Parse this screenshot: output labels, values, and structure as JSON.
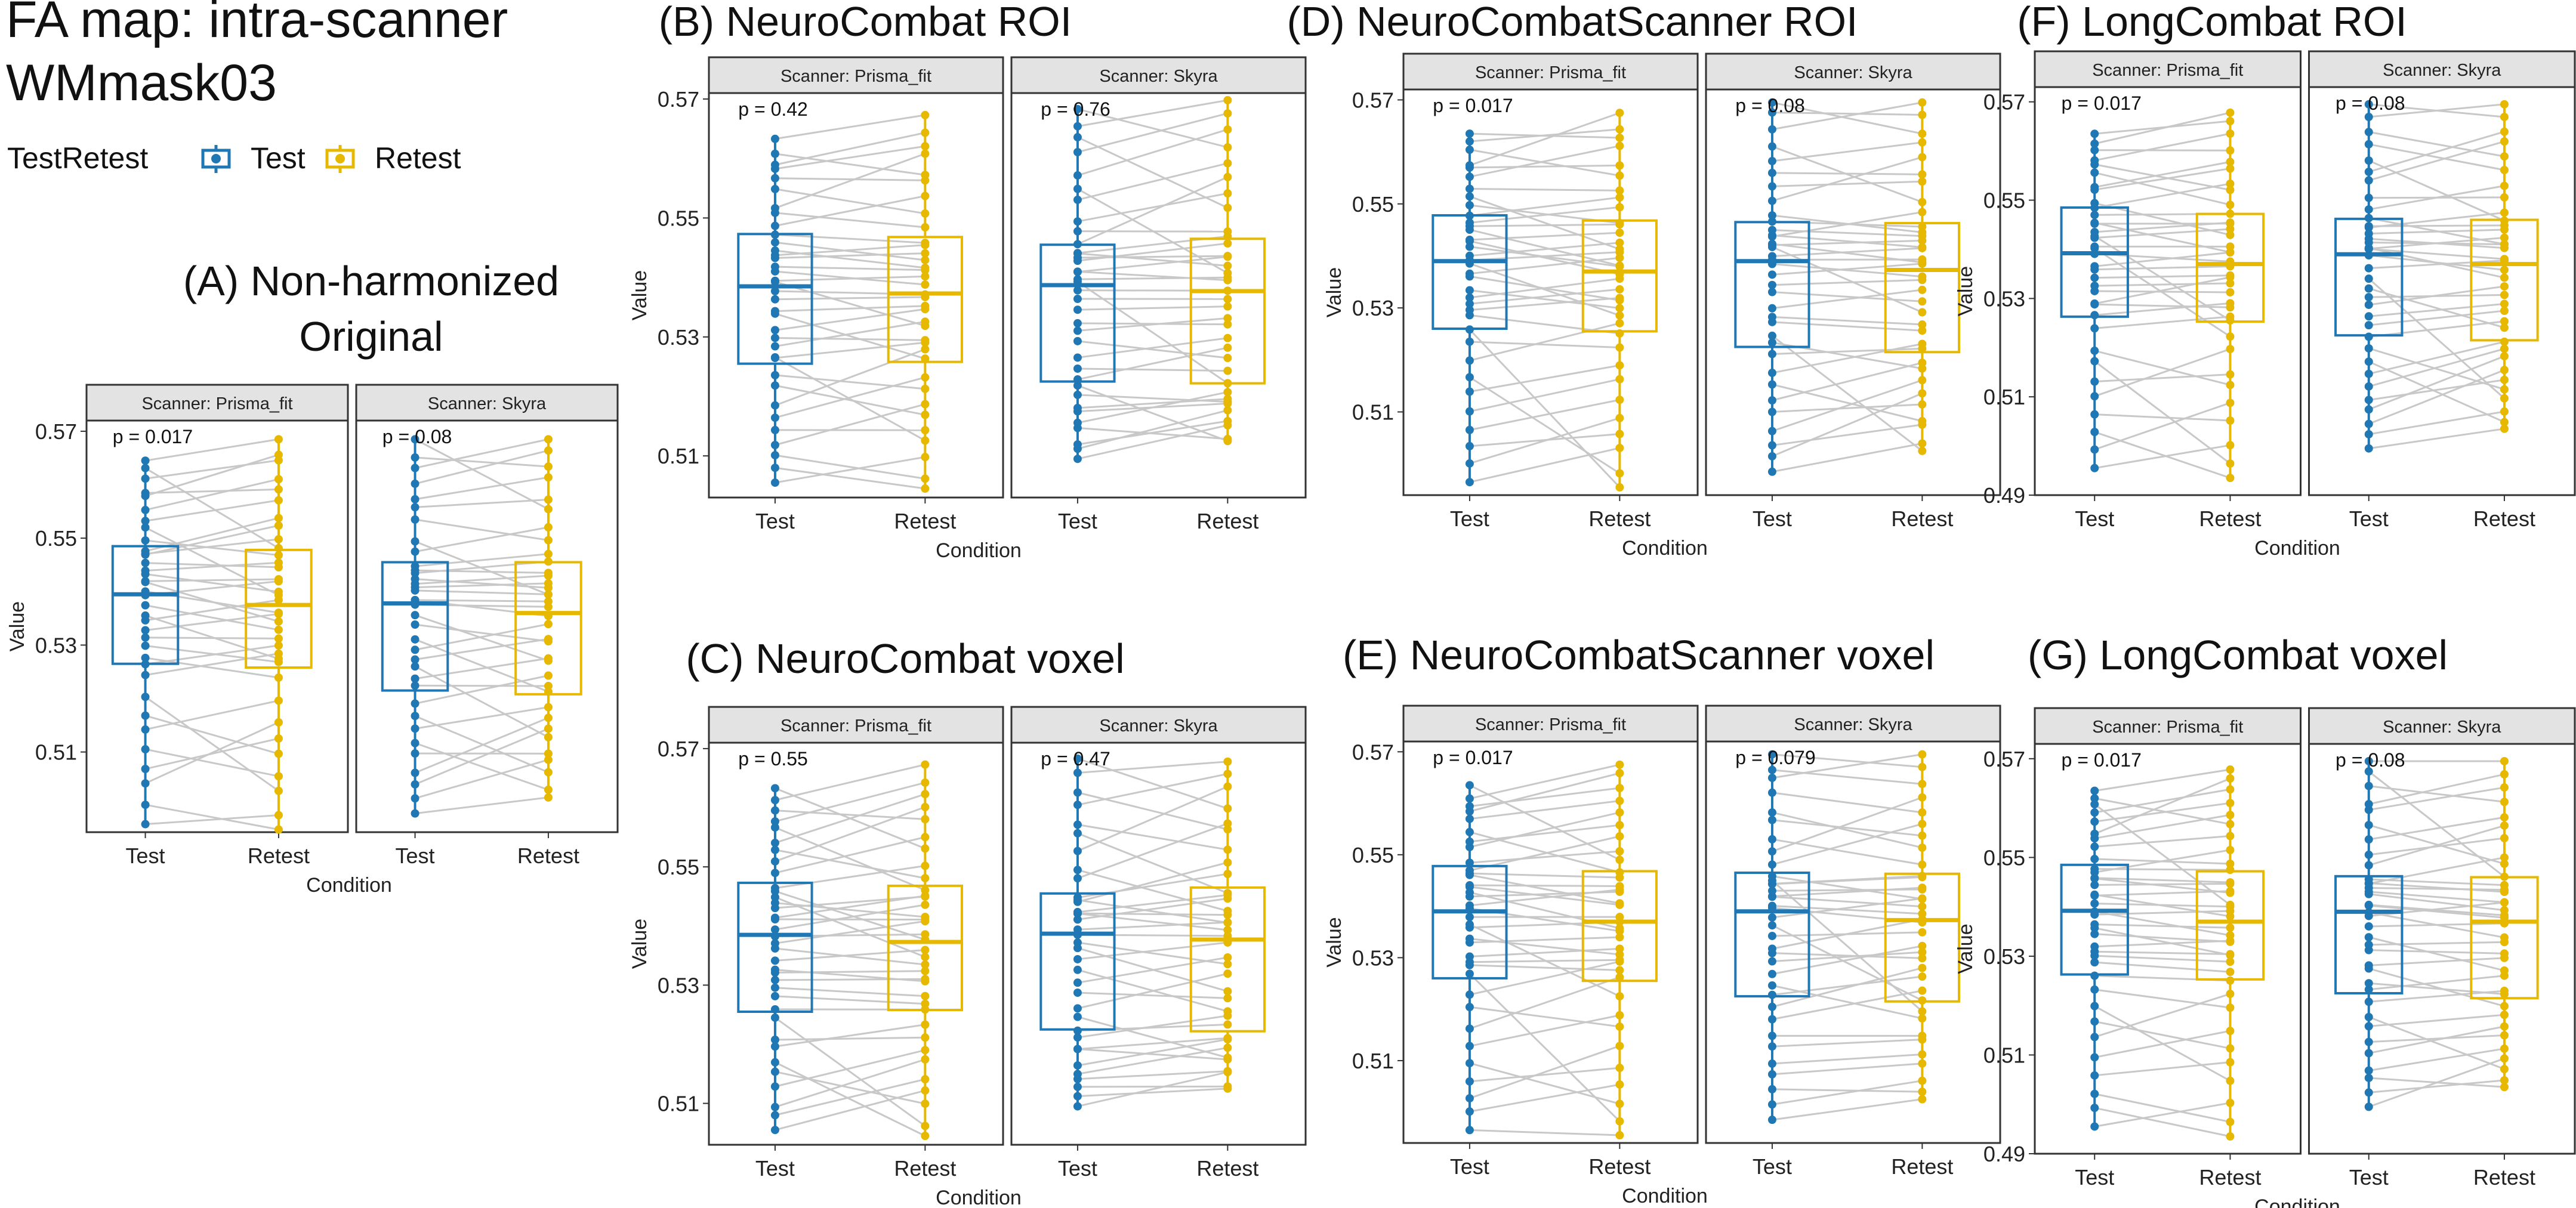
{
  "figure": {
    "title_line1": "FA map: intra-scanner",
    "title_line2": "WMmask03",
    "legend": {
      "title": "TestRetest",
      "items": [
        {
          "label": "Test",
          "color": "#1f77b4"
        },
        {
          "label": "Retest",
          "color": "#e6b800"
        }
      ]
    }
  },
  "colors": {
    "test": "#1f77b4",
    "retest": "#e6b800",
    "pair_line": "#c8c8c8",
    "strip_fill": "#e3e3e3"
  },
  "chart_data": [
    {
      "id": "A",
      "type": "boxplot",
      "title_lines": [
        "(A) Non-harmonized",
        "Original"
      ],
      "ylabel": "Value",
      "xlabel": "Condition",
      "categories": [
        "Test",
        "Retest"
      ],
      "ylim": [
        0.495,
        0.572
      ],
      "yticks": [
        0.51,
        0.53,
        0.55,
        0.57
      ],
      "ytick_labels": [
        "0.51",
        "0.53",
        "0.55",
        "0.57"
      ],
      "facets": [
        {
          "strip": "Scanner: Prisma_fit",
          "p_label": "p = 0.017",
          "test": {
            "min": 0.4965,
            "q1": 0.5265,
            "median": 0.5395,
            "q3": 0.5485,
            "max": 0.5645
          },
          "retest": {
            "min": 0.4955,
            "q1": 0.5258,
            "median": 0.5375,
            "q3": 0.5478,
            "max": 0.5685
          }
        },
        {
          "strip": "Scanner: Skyra",
          "p_label": "p = 0.08",
          "test": {
            "min": 0.4985,
            "q1": 0.5215,
            "median": 0.5378,
            "q3": 0.5455,
            "max": 0.5685
          },
          "retest": {
            "min": 0.5015,
            "q1": 0.5208,
            "median": 0.536,
            "q3": 0.5455,
            "max": 0.5685
          }
        }
      ]
    },
    {
      "id": "B",
      "type": "boxplot",
      "title_lines": [
        "(B) NeuroCombat ROI"
      ],
      "ylabel": "Value",
      "xlabel": "Condition",
      "categories": [
        "Test",
        "Retest"
      ],
      "ylim": [
        0.503,
        0.571
      ],
      "yticks": [
        0.51,
        0.53,
        0.55,
        0.57
      ],
      "ytick_labels": [
        "0.51",
        "0.53",
        "0.55",
        "0.57"
      ],
      "facets": [
        {
          "strip": "Scanner: Prisma_fit",
          "p_label": "p = 0.42",
          "test": {
            "min": 0.5055,
            "q1": 0.5255,
            "median": 0.5385,
            "q3": 0.5473,
            "max": 0.5633
          },
          "retest": {
            "min": 0.5045,
            "q1": 0.5258,
            "median": 0.5373,
            "q3": 0.5468,
            "max": 0.5673
          }
        },
        {
          "strip": "Scanner: Skyra",
          "p_label": "p = 0.76",
          "test": {
            "min": 0.5095,
            "q1": 0.5225,
            "median": 0.5387,
            "q3": 0.5455,
            "max": 0.5683
          },
          "retest": {
            "min": 0.5125,
            "q1": 0.5222,
            "median": 0.5377,
            "q3": 0.5465,
            "max": 0.5698
          }
        }
      ]
    },
    {
      "id": "C",
      "type": "boxplot",
      "title_lines": [
        "(C) NeuroCombat voxel"
      ],
      "ylabel": "Value",
      "xlabel": "Condition",
      "categories": [
        "Test",
        "Retest"
      ],
      "ylim": [
        0.503,
        0.571
      ],
      "yticks": [
        0.51,
        0.53,
        0.55,
        0.57
      ],
      "ytick_labels": [
        "0.51",
        "0.53",
        "0.55",
        "0.57"
      ],
      "facets": [
        {
          "strip": "Scanner: Prisma_fit",
          "p_label": "p = 0.55",
          "test": {
            "min": 0.5055,
            "q1": 0.5255,
            "median": 0.5385,
            "q3": 0.5473,
            "max": 0.5633
          },
          "retest": {
            "min": 0.5045,
            "q1": 0.5258,
            "median": 0.5373,
            "q3": 0.5468,
            "max": 0.5673
          }
        },
        {
          "strip": "Scanner: Skyra",
          "p_label": "p = 0.47",
          "test": {
            "min": 0.5095,
            "q1": 0.5225,
            "median": 0.5387,
            "q3": 0.5455,
            "max": 0.5683
          },
          "retest": {
            "min": 0.5125,
            "q1": 0.5222,
            "median": 0.5377,
            "q3": 0.5465,
            "max": 0.5678
          }
        }
      ]
    },
    {
      "id": "D",
      "type": "boxplot",
      "title_lines": [
        "(D) NeuroCombatScanner ROI"
      ],
      "ylabel": "Value",
      "xlabel": "Condition",
      "categories": [
        "Test",
        "Retest"
      ],
      "ylim": [
        0.494,
        0.572
      ],
      "yticks": [
        0.51,
        0.53,
        0.55,
        0.57
      ],
      "ytick_labels": [
        "0.51",
        "0.53",
        "0.55",
        "0.57"
      ],
      "facets": [
        {
          "strip": "Scanner: Prisma_fit",
          "p_label": "p = 0.017",
          "test": {
            "min": 0.4965,
            "q1": 0.526,
            "median": 0.539,
            "q3": 0.5478,
            "max": 0.5635
          },
          "retest": {
            "min": 0.4955,
            "q1": 0.5255,
            "median": 0.537,
            "q3": 0.5468,
            "max": 0.5675
          }
        },
        {
          "strip": "Scanner: Skyra",
          "p_label": "p = 0.08",
          "test": {
            "min": 0.4985,
            "q1": 0.5225,
            "median": 0.539,
            "q3": 0.5465,
            "max": 0.5695
          },
          "retest": {
            "min": 0.5025,
            "q1": 0.5215,
            "median": 0.5373,
            "q3": 0.5463,
            "max": 0.5695
          }
        }
      ]
    },
    {
      "id": "E",
      "type": "boxplot",
      "title_lines": [
        "(E) NeuroCombatScanner voxel"
      ],
      "ylabel": "Value",
      "xlabel": "Condition",
      "categories": [
        "Test",
        "Retest"
      ],
      "ylim": [
        0.494,
        0.572
      ],
      "yticks": [
        0.51,
        0.53,
        0.55,
        0.57
      ],
      "ytick_labels": [
        "0.51",
        "0.53",
        "0.55",
        "0.57"
      ],
      "facets": [
        {
          "strip": "Scanner: Prisma_fit",
          "p_label": "p = 0.017",
          "test": {
            "min": 0.4965,
            "q1": 0.526,
            "median": 0.539,
            "q3": 0.5478,
            "max": 0.5635
          },
          "retest": {
            "min": 0.4955,
            "q1": 0.5255,
            "median": 0.537,
            "q3": 0.5468,
            "max": 0.5675
          }
        },
        {
          "strip": "Scanner: Skyra",
          "p_label": "p = 0.079",
          "test": {
            "min": 0.4985,
            "q1": 0.5225,
            "median": 0.539,
            "q3": 0.5465,
            "max": 0.5695
          },
          "retest": {
            "min": 0.5025,
            "q1": 0.5215,
            "median": 0.5373,
            "q3": 0.5463,
            "max": 0.5695
          }
        }
      ]
    },
    {
      "id": "F",
      "type": "boxplot",
      "title_lines": [
        "(F) LongCombat ROI"
      ],
      "ylabel": "Value",
      "xlabel": "Condition",
      "categories": [
        "Test",
        "Retest"
      ],
      "ylim": [
        0.49,
        0.573
      ],
      "yticks": [
        0.49,
        0.51,
        0.53,
        0.55,
        0.57
      ],
      "ytick_labels": [
        "0.49",
        "0.51",
        "0.53",
        "0.55",
        "0.57"
      ],
      "facets": [
        {
          "strip": "Scanner: Prisma_fit",
          "p_label": "p = 0.017",
          "test": {
            "min": 0.4955,
            "q1": 0.5263,
            "median": 0.5392,
            "q3": 0.5485,
            "max": 0.5635
          },
          "retest": {
            "min": 0.4935,
            "q1": 0.5253,
            "median": 0.537,
            "q3": 0.5472,
            "max": 0.5678
          }
        },
        {
          "strip": "Scanner: Skyra",
          "p_label": "p = 0.08",
          "test": {
            "min": 0.4995,
            "q1": 0.5225,
            "median": 0.539,
            "q3": 0.5462,
            "max": 0.5695
          },
          "retest": {
            "min": 0.5035,
            "q1": 0.5215,
            "median": 0.537,
            "q3": 0.546,
            "max": 0.5695
          }
        }
      ]
    },
    {
      "id": "G",
      "type": "boxplot",
      "title_lines": [
        "(G) LongCombat voxel"
      ],
      "ylabel": "Value",
      "xlabel": "Condition",
      "categories": [
        "Test",
        "Retest"
      ],
      "ylim": [
        0.49,
        0.573
      ],
      "yticks": [
        0.49,
        0.51,
        0.53,
        0.55,
        0.57
      ],
      "ytick_labels": [
        "0.49",
        "0.51",
        "0.53",
        "0.55",
        "0.57"
      ],
      "facets": [
        {
          "strip": "Scanner: Prisma_fit",
          "p_label": "p = 0.017",
          "test": {
            "min": 0.4955,
            "q1": 0.5263,
            "median": 0.5392,
            "q3": 0.5485,
            "max": 0.5635
          },
          "retest": {
            "min": 0.4935,
            "q1": 0.5253,
            "median": 0.537,
            "q3": 0.5472,
            "max": 0.5678
          }
        },
        {
          "strip": "Scanner: Skyra",
          "p_label": "p = 0.08",
          "test": {
            "min": 0.4995,
            "q1": 0.5225,
            "median": 0.539,
            "q3": 0.5462,
            "max": 0.5695
          },
          "retest": {
            "min": 0.5035,
            "q1": 0.5215,
            "median": 0.537,
            "q3": 0.546,
            "max": 0.5695
          }
        }
      ]
    }
  ]
}
